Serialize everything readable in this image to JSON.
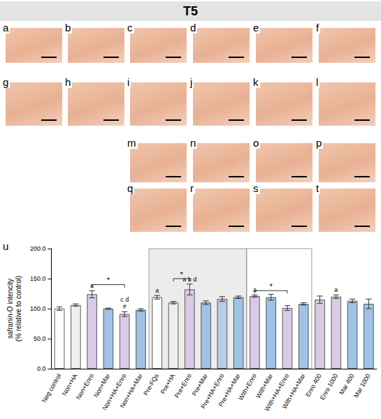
{
  "title": "T5",
  "panel_rows": [
    [
      "a",
      "b",
      "c",
      "d",
      "e",
      "f"
    ],
    [
      "g",
      "h",
      "i",
      "j",
      "k",
      "l"
    ],
    [
      null,
      null,
      "m",
      "n",
      "o",
      "p"
    ],
    [
      null,
      null,
      "q",
      "r",
      "s",
      "t"
    ]
  ],
  "chart_label": "u",
  "chart_data": {
    "type": "bar",
    "y_label": [
      "safranin-O intencity",
      "(% relative to control)"
    ],
    "categories": [
      "Neg control",
      "Non+HA",
      "Non+Enro",
      "Non+Mar",
      "Non+HA+Enro",
      "Non+HA+Mar",
      "Pre-FQs",
      "Pre+HA",
      "Pre+Enro",
      "Pre+Mar",
      "Pre+HA+Enro",
      "Pre+HA+Mar",
      "With+Enro",
      "With+Mar",
      "With+HA+Enro",
      "With+HA+Mar",
      "Enro 400",
      "Enro 1000",
      "Mar 400",
      "Mar 1000"
    ],
    "values": [
      100,
      106,
      124,
      100,
      91,
      98,
      119,
      110,
      132,
      110,
      116,
      119,
      121,
      119,
      101,
      108,
      115,
      120,
      113,
      108
    ],
    "errors": [
      3,
      2,
      6,
      1,
      4,
      2,
      3,
      2,
      9,
      3,
      4,
      2,
      2,
      5,
      4,
      2,
      6,
      3,
      3,
      8
    ],
    "colors": [
      "#ffffff",
      "#eeeeee",
      "#d9cbe6",
      "#9fc3e6",
      "#d9cbe6",
      "#9fc3e6",
      "#ffffff",
      "#eeeeee",
      "#d9cbe6",
      "#9fc3e6",
      "#b9cde6",
      "#9fc3e6",
      "#d9cbe6",
      "#9fc3e6",
      "#d9cbe6",
      "#9fc3e6",
      "#d9cbe6",
      "#d9cbe6",
      "#9fc3e6",
      "#9fc3e6"
    ],
    "sig_labels": [
      null,
      null,
      [
        "a"
      ],
      null,
      [
        "c d",
        "#"
      ],
      null,
      [
        "a"
      ],
      null,
      [
        "a b d"
      ],
      null,
      null,
      null,
      [
        "a"
      ],
      null,
      null,
      null,
      null,
      [
        "a"
      ],
      null,
      null
    ],
    "brackets": [
      {
        "from": "Non+Enro",
        "to": "Non+HA+Enro",
        "label": "*",
        "y": 140
      },
      {
        "from": "Pre+HA",
        "to": "Pre+Enro",
        "label": "*",
        "y": 150
      },
      {
        "from": "With+Enro",
        "to": "With+HA+Enro",
        "label": "*",
        "y": 130
      }
    ],
    "groups": [
      {
        "from": "Pre-FQs",
        "to": "Pre+HA+Mar",
        "shaded": true
      },
      {
        "from": "With+Enro",
        "to": "With+HA+Mar",
        "shaded": false
      }
    ],
    "ylim": [
      0,
      200
    ],
    "yticks": [
      {
        "value": 0,
        "label": "0.0"
      },
      {
        "value": 50,
        "label": "50.0"
      },
      {
        "value": 100,
        "label": "100.0"
      },
      {
        "value": 150,
        "label": "150.0"
      },
      {
        "value": 200,
        "label": "200.0"
      }
    ],
    "grid": false
  }
}
